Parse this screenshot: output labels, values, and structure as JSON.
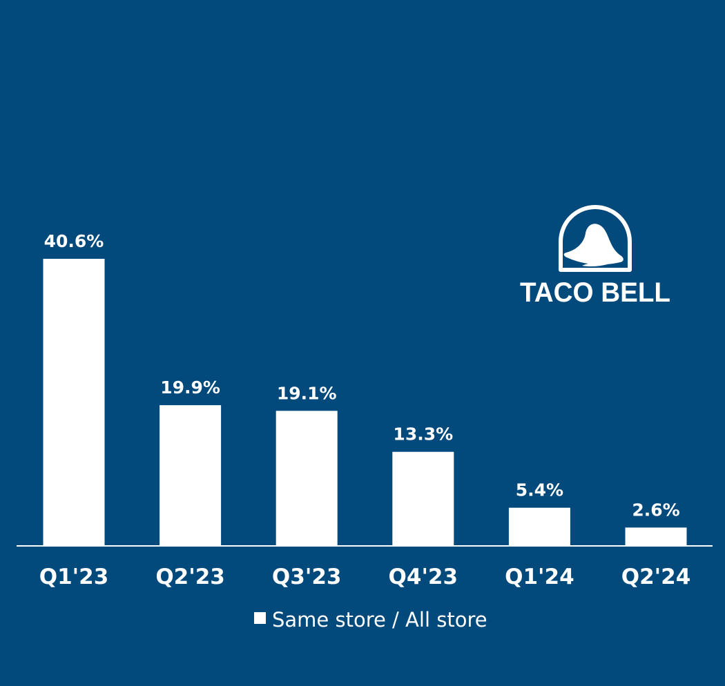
{
  "colors": {
    "background": "#02497c",
    "bar": "#ffffff",
    "axis": "#ffffff",
    "text": "#ffffff"
  },
  "logo": {
    "brand_text": "TACO BELL",
    "icon": "taco-bell-bell-icon"
  },
  "chart_data": {
    "type": "bar",
    "categories": [
      "Q1'23",
      "Q2'23",
      "Q3'23",
      "Q4'23",
      "Q1'24",
      "Q2'24"
    ],
    "series": [
      {
        "name": "Same store / All store",
        "values": [
          40.6,
          19.9,
          19.1,
          13.3,
          5.4,
          2.6
        ],
        "labels": [
          "40.6%",
          "19.9%",
          "19.1%",
          "13.3%",
          "5.4%",
          "2.6%"
        ]
      }
    ],
    "title": "",
    "xlabel": "",
    "ylabel": "",
    "ylim": [
      0,
      40.6
    ],
    "grid": false,
    "legend": "bottom-center"
  }
}
